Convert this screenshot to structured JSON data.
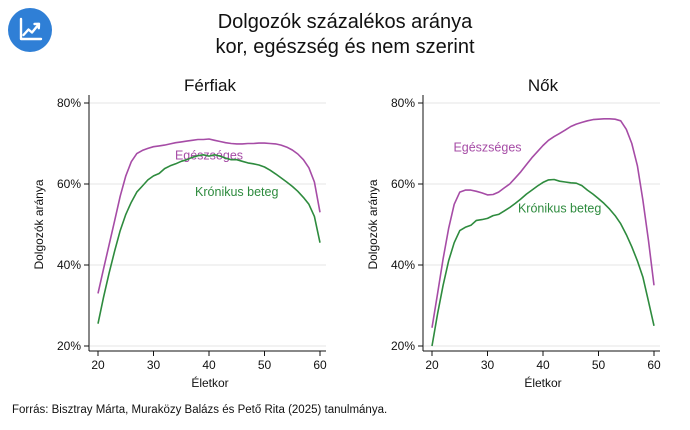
{
  "header": {
    "title_line1": "Dolgozók százalékos aránya",
    "title_line2": "kor, egészség és nem szerint",
    "logo_icon": "trend-chart-icon",
    "logo_color": "#2f7fd6"
  },
  "source": "Forrás: Bisztray Márta, Muraközy Balázs és Pető Rita (2025) tanulmánya.",
  "chart_data": [
    {
      "type": "line",
      "title": "Férfiak",
      "xlabel": "Életkor",
      "ylabel": "Dolgozók aránya",
      "xlim": [
        20,
        60
      ],
      "ylim": [
        20,
        80
      ],
      "xticks": [
        20,
        30,
        40,
        50,
        60
      ],
      "yticks": [
        20,
        40,
        60,
        80
      ],
      "ytick_labels": [
        "20%",
        "40%",
        "60%",
        "80%"
      ],
      "grid": true,
      "series": [
        {
          "name": "Egészséges",
          "color": "#a64ca6",
          "x": [
            20,
            21,
            22,
            23,
            24,
            25,
            26,
            27,
            28,
            29,
            30,
            31,
            32,
            33,
            34,
            35,
            36,
            37,
            38,
            39,
            40,
            41,
            42,
            43,
            44,
            45,
            46,
            47,
            48,
            49,
            50,
            51,
            52,
            53,
            54,
            55,
            56,
            57,
            58,
            59,
            60
          ],
          "y": [
            33,
            39,
            45,
            51,
            57,
            62,
            65.5,
            67.5,
            68.3,
            68.8,
            69.2,
            69.4,
            69.6,
            69.9,
            70.2,
            70.4,
            70.6,
            70.8,
            71,
            71,
            71.1,
            70.8,
            70.5,
            70.2,
            70,
            69.9,
            69.9,
            70,
            70,
            70.1,
            70.1,
            70,
            69.9,
            69.6,
            69.1,
            68.4,
            67.4,
            66,
            64,
            60.5,
            53
          ]
        },
        {
          "name": "Krónikus beteg",
          "color": "#2e8b3e",
          "x": [
            20,
            21,
            22,
            23,
            24,
            25,
            26,
            27,
            28,
            29,
            30,
            31,
            32,
            33,
            34,
            35,
            36,
            37,
            38,
            39,
            40,
            41,
            42,
            43,
            44,
            45,
            46,
            47,
            48,
            49,
            50,
            51,
            52,
            53,
            54,
            55,
            56,
            57,
            58,
            59,
            60
          ],
          "y": [
            25.5,
            32,
            38,
            43.5,
            48.5,
            52.5,
            55.5,
            58,
            59.5,
            61,
            62,
            62.6,
            63.8,
            64.5,
            65,
            65.6,
            66,
            66.6,
            67,
            67.2,
            66.9,
            67.2,
            66.9,
            66.4,
            66,
            66,
            65.6,
            65.2,
            65,
            64.7,
            64.2,
            63.4,
            62.5,
            61.5,
            60.5,
            59.4,
            58.2,
            56.7,
            55,
            52,
            45.5
          ]
        }
      ]
    },
    {
      "type": "line",
      "title": "Nők",
      "xlabel": "Életkor",
      "ylabel": "Dolgozók aránya",
      "xlim": [
        20,
        60
      ],
      "ylim": [
        20,
        80
      ],
      "xticks": [
        20,
        30,
        40,
        50,
        60
      ],
      "yticks": [
        20,
        40,
        60,
        80
      ],
      "ytick_labels": [
        "20%",
        "40%",
        "60%",
        "80%"
      ],
      "grid": true,
      "series": [
        {
          "name": "Egészséges",
          "color": "#a64ca6",
          "x": [
            20,
            21,
            22,
            23,
            24,
            25,
            26,
            27,
            28,
            29,
            30,
            31,
            32,
            33,
            34,
            35,
            36,
            37,
            38,
            39,
            40,
            41,
            42,
            43,
            44,
            45,
            46,
            47,
            48,
            49,
            50,
            51,
            52,
            53,
            54,
            55,
            56,
            57,
            58,
            59,
            60
          ],
          "y": [
            24.5,
            33,
            41.5,
            49,
            55,
            58,
            58.5,
            58.5,
            58.2,
            57.8,
            57.3,
            57.4,
            58,
            59,
            60,
            61.5,
            63,
            64.8,
            66.5,
            68,
            69.5,
            70.8,
            71.7,
            72.5,
            73.3,
            74.2,
            74.8,
            75.2,
            75.6,
            75.9,
            76,
            76.1,
            76.1,
            76,
            75.6,
            73.5,
            70,
            64.5,
            56,
            46,
            35
          ]
        },
        {
          "name": "Krónikus beteg",
          "color": "#2e8b3e",
          "x": [
            20,
            21,
            22,
            23,
            24,
            25,
            26,
            27,
            28,
            29,
            30,
            31,
            32,
            33,
            34,
            35,
            36,
            37,
            38,
            39,
            40,
            41,
            42,
            43,
            44,
            45,
            46,
            47,
            48,
            49,
            50,
            51,
            52,
            53,
            54,
            55,
            56,
            57,
            58,
            59,
            60
          ],
          "y": [
            20,
            28,
            35,
            41,
            45.5,
            48.5,
            49.3,
            49.8,
            51,
            51.2,
            51.5,
            52.2,
            52.5,
            53.3,
            54.2,
            55.2,
            56.3,
            57.5,
            58.5,
            59.5,
            60.4,
            61,
            61.1,
            60.7,
            60.5,
            60.3,
            60.2,
            59.6,
            58.5,
            57.5,
            56.4,
            55.2,
            53.8,
            52.2,
            50.2,
            47.5,
            44.5,
            41,
            37,
            31,
            25
          ]
        }
      ]
    }
  ]
}
